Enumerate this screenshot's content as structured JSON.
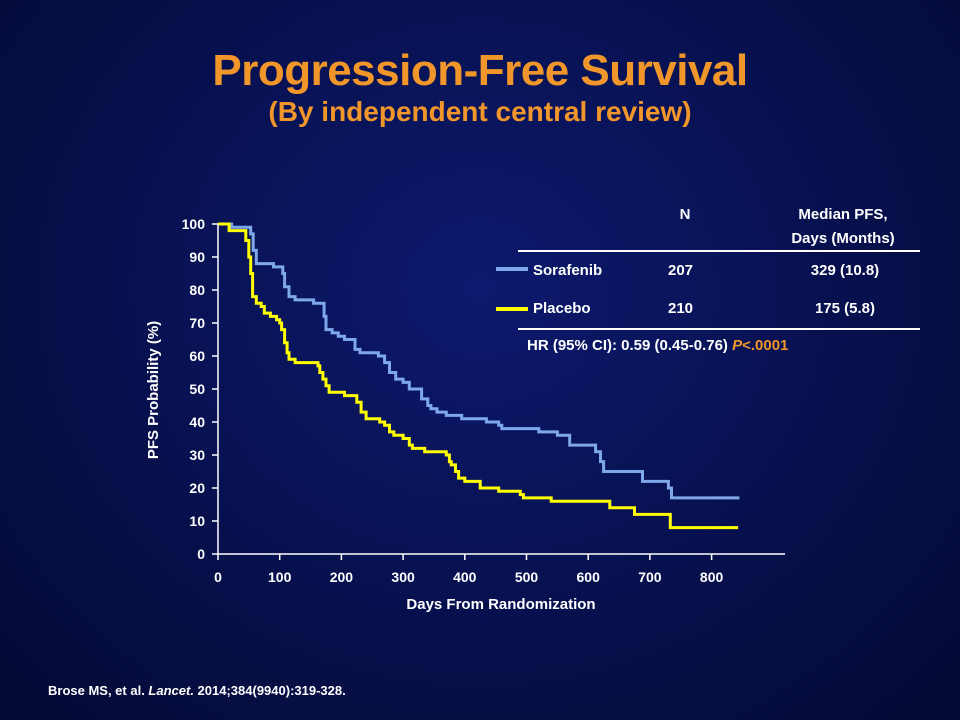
{
  "slide": {
    "title": "Progression-Free Survival",
    "subtitle": "(By independent central review)"
  },
  "chart_data": {
    "type": "line",
    "title": "Progression-Free Survival",
    "subtitle": "(By independent central review)",
    "xlabel": "Days From Randomization",
    "ylabel": "PFS Probability (%)",
    "xlim": [
      0,
      850
    ],
    "ylim": [
      0,
      100
    ],
    "x_ticks": [
      "0",
      "100",
      "200",
      "300",
      "400",
      "500",
      "600",
      "700",
      "800"
    ],
    "y_ticks": [
      "0",
      "10",
      "20",
      "30",
      "40",
      "50",
      "60",
      "70",
      "80",
      "90",
      "100"
    ],
    "grid": false,
    "legend_placement": "top-right",
    "series": [
      {
        "name": "Sorafenib",
        "color": "#7fa8ea",
        "step": true,
        "points": [
          [
            0,
            100
          ],
          [
            20,
            100
          ],
          [
            22,
            99
          ],
          [
            50,
            99
          ],
          [
            53,
            97
          ],
          [
            57,
            92
          ],
          [
            62,
            88
          ],
          [
            70,
            88
          ],
          [
            90,
            87
          ],
          [
            105,
            85
          ],
          [
            108,
            81
          ],
          [
            115,
            78
          ],
          [
            125,
            77
          ],
          [
            150,
            77
          ],
          [
            155,
            76
          ],
          [
            168,
            76
          ],
          [
            172,
            72
          ],
          [
            175,
            68
          ],
          [
            185,
            67
          ],
          [
            195,
            66
          ],
          [
            205,
            65
          ],
          [
            215,
            65
          ],
          [
            222,
            62
          ],
          [
            230,
            61
          ],
          [
            255,
            61
          ],
          [
            260,
            60
          ],
          [
            270,
            58
          ],
          [
            278,
            55
          ],
          [
            288,
            53
          ],
          [
            300,
            52
          ],
          [
            310,
            50
          ],
          [
            325,
            50
          ],
          [
            330,
            47
          ],
          [
            340,
            45
          ],
          [
            345,
            44
          ],
          [
            355,
            43
          ],
          [
            370,
            42
          ],
          [
            385,
            42
          ],
          [
            395,
            41
          ],
          [
            425,
            41
          ],
          [
            435,
            40
          ],
          [
            455,
            39
          ],
          [
            460,
            38
          ],
          [
            515,
            38
          ],
          [
            520,
            37
          ],
          [
            545,
            37
          ],
          [
            550,
            36
          ],
          [
            565,
            36
          ],
          [
            570,
            33
          ],
          [
            605,
            33
          ],
          [
            612,
            31
          ],
          [
            620,
            28
          ],
          [
            625,
            25
          ],
          [
            683,
            25
          ],
          [
            688,
            22
          ],
          [
            727,
            22
          ],
          [
            730,
            20
          ],
          [
            735,
            17
          ],
          [
            845,
            17
          ]
        ]
      },
      {
        "name": "Placebo",
        "color": "#ffff00",
        "step": true,
        "points": [
          [
            0,
            100
          ],
          [
            15,
            100
          ],
          [
            18,
            98
          ],
          [
            40,
            98
          ],
          [
            45,
            95
          ],
          [
            50,
            90
          ],
          [
            53,
            85
          ],
          [
            56,
            78
          ],
          [
            62,
            76
          ],
          [
            70,
            75
          ],
          [
            75,
            73
          ],
          [
            85,
            72
          ],
          [
            95,
            71
          ],
          [
            100,
            70
          ],
          [
            103,
            68
          ],
          [
            108,
            64
          ],
          [
            112,
            61
          ],
          [
            115,
            59
          ],
          [
            125,
            58
          ],
          [
            155,
            58
          ],
          [
            162,
            57
          ],
          [
            165,
            55
          ],
          [
            170,
            53
          ],
          [
            175,
            51
          ],
          [
            180,
            49
          ],
          [
            200,
            49
          ],
          [
            205,
            48
          ],
          [
            222,
            48
          ],
          [
            225,
            46
          ],
          [
            232,
            43
          ],
          [
            240,
            41
          ],
          [
            255,
            41
          ],
          [
            262,
            40
          ],
          [
            270,
            39
          ],
          [
            278,
            37
          ],
          [
            285,
            36
          ],
          [
            300,
            35
          ],
          [
            310,
            33
          ],
          [
            315,
            32
          ],
          [
            335,
            31
          ],
          [
            360,
            31
          ],
          [
            370,
            30
          ],
          [
            375,
            28
          ],
          [
            378,
            27
          ],
          [
            385,
            25
          ],
          [
            390,
            23
          ],
          [
            400,
            22
          ],
          [
            420,
            22
          ],
          [
            425,
            20
          ],
          [
            450,
            20
          ],
          [
            455,
            19
          ],
          [
            478,
            19
          ],
          [
            490,
            18
          ],
          [
            495,
            17
          ],
          [
            535,
            17
          ],
          [
            540,
            16
          ],
          [
            630,
            16
          ],
          [
            635,
            14
          ],
          [
            670,
            14
          ],
          [
            675,
            12
          ],
          [
            730,
            12
          ],
          [
            733,
            8
          ],
          [
            843,
            8
          ]
        ]
      }
    ],
    "legend_table": {
      "col_n": "N",
      "col_median_line1": "Median PFS,",
      "col_median_line2": "Days (Months)",
      "rows": [
        {
          "name": "Sorafenib",
          "n": "207",
          "median": "329 (10.8)",
          "color": "#7fa8ea"
        },
        {
          "name": "Placebo",
          "n": "210",
          "median": "175 (5.8)",
          "color": "#ffff00"
        }
      ]
    },
    "annotation": {
      "hr_text": "HR (95% CI): 0.59 (0.45-0.76) ",
      "p_prefix": "P",
      "p_value": "<.0001"
    }
  },
  "citation": {
    "authors": "Brose MS, et al. ",
    "journal": "Lancet.",
    "details": " 2014;384(9940):319-328."
  }
}
